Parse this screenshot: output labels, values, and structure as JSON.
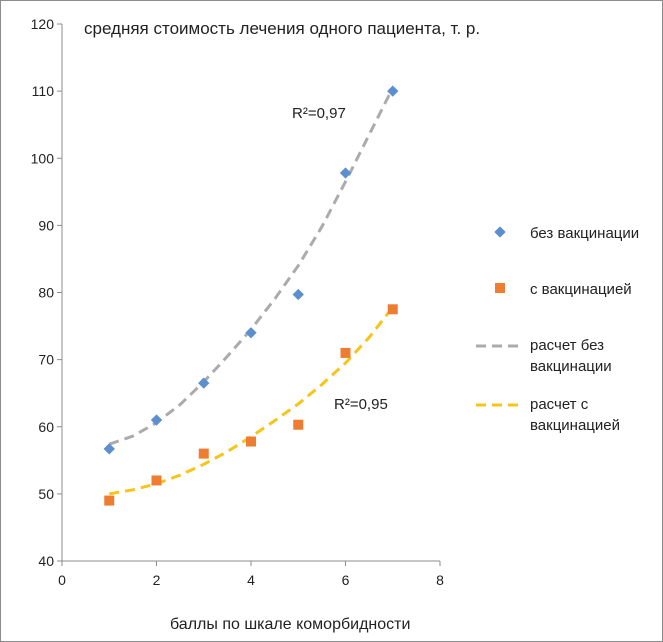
{
  "chart_data": {
    "type": "scatter",
    "title": "средняя стоимость лечения одного пациента, т. р.",
    "xlabel": "баллы по шкале коморбидности",
    "ylabel": "",
    "xlim": [
      0,
      8
    ],
    "ylim": [
      40,
      120
    ],
    "xticks": [
      "0",
      "2",
      "4",
      "6",
      "8"
    ],
    "yticks": [
      "40",
      "50",
      "60",
      "70",
      "80",
      "90",
      "100",
      "110",
      "120"
    ],
    "grid": false,
    "legend_position": "right",
    "series": [
      {
        "name": "без вакцинации",
        "marker": "diamond",
        "color": "#5b8fcf",
        "x": [
          1,
          2,
          3,
          4,
          5,
          6,
          7
        ],
        "y": [
          56.7,
          61,
          66.5,
          74,
          79.7,
          97.8,
          110
        ]
      },
      {
        "name": "с вакцинацией",
        "marker": "square",
        "color": "#ee7d31",
        "x": [
          1,
          2,
          3,
          4,
          5,
          6,
          7
        ],
        "y": [
          49,
          52,
          56,
          57.8,
          60.3,
          71,
          77.5
        ]
      }
    ],
    "trendlines": [
      {
        "name": "расчет без вакцинации",
        "color": "#ababab",
        "style": "dashed",
        "x": [
          1,
          1.5,
          2,
          2.5,
          3,
          3.5,
          4,
          4.5,
          5,
          5.5,
          6,
          6.5,
          7
        ],
        "y": [
          57.4,
          58.6,
          60.6,
          63.3,
          66.7,
          70.5,
          74.5,
          79,
          84,
          89.8,
          96.5,
          103.5,
          110.5
        ]
      },
      {
        "name": "расчет с вакцинацией",
        "color": "#f5c518",
        "style": "dashed",
        "x": [
          1,
          1.5,
          2,
          2.5,
          3,
          3.5,
          4,
          4.5,
          5,
          5.5,
          6,
          6.5,
          7
        ],
        "y": [
          50,
          50.6,
          51.5,
          52.8,
          54.4,
          56.3,
          58.5,
          60.9,
          63.4,
          66.3,
          69.5,
          73.3,
          77.8
        ]
      }
    ],
    "annotations": [
      {
        "text": "R²=0,97"
      },
      {
        "text": "R²=0,95"
      }
    ]
  }
}
